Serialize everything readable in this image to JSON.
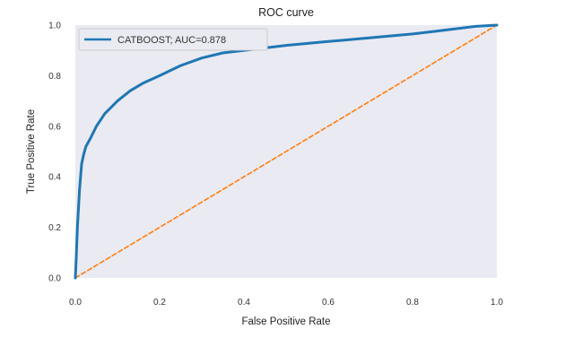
{
  "chart_data": {
    "type": "line",
    "title": "ROC curve",
    "xlabel": "False Positive Rate",
    "ylabel": "True Positive Rate",
    "xlim": [
      0.0,
      1.0
    ],
    "ylim": [
      0.0,
      1.0
    ],
    "x_ticks": [
      "0.0",
      "0.2",
      "0.4",
      "0.6",
      "0.8",
      "1.0"
    ],
    "y_ticks": [
      "0.0",
      "0.2",
      "0.4",
      "0.6",
      "0.8",
      "1.0"
    ],
    "grid": false,
    "legend_position": "top-left",
    "background": "#eaeaf2",
    "series": [
      {
        "name": "CATBOOST; AUC=0.878",
        "color": "#1f77b4",
        "style": "solid",
        "x": [
          0.0,
          0.002,
          0.005,
          0.01,
          0.015,
          0.02,
          0.025,
          0.035,
          0.05,
          0.07,
          0.1,
          0.13,
          0.16,
          0.2,
          0.25,
          0.3,
          0.35,
          0.4,
          0.5,
          0.6,
          0.7,
          0.8,
          0.85,
          0.9,
          0.95,
          1.0
        ],
        "y": [
          0.0,
          0.07,
          0.2,
          0.35,
          0.45,
          0.49,
          0.52,
          0.55,
          0.6,
          0.65,
          0.7,
          0.74,
          0.77,
          0.8,
          0.84,
          0.87,
          0.89,
          0.9,
          0.92,
          0.935,
          0.95,
          0.965,
          0.975,
          0.985,
          0.995,
          1.0
        ]
      },
      {
        "color": "#ff7f0e",
        "style": "dashed",
        "x": [
          0.0,
          1.0
        ],
        "y": [
          0.0,
          1.0
        ]
      }
    ]
  }
}
